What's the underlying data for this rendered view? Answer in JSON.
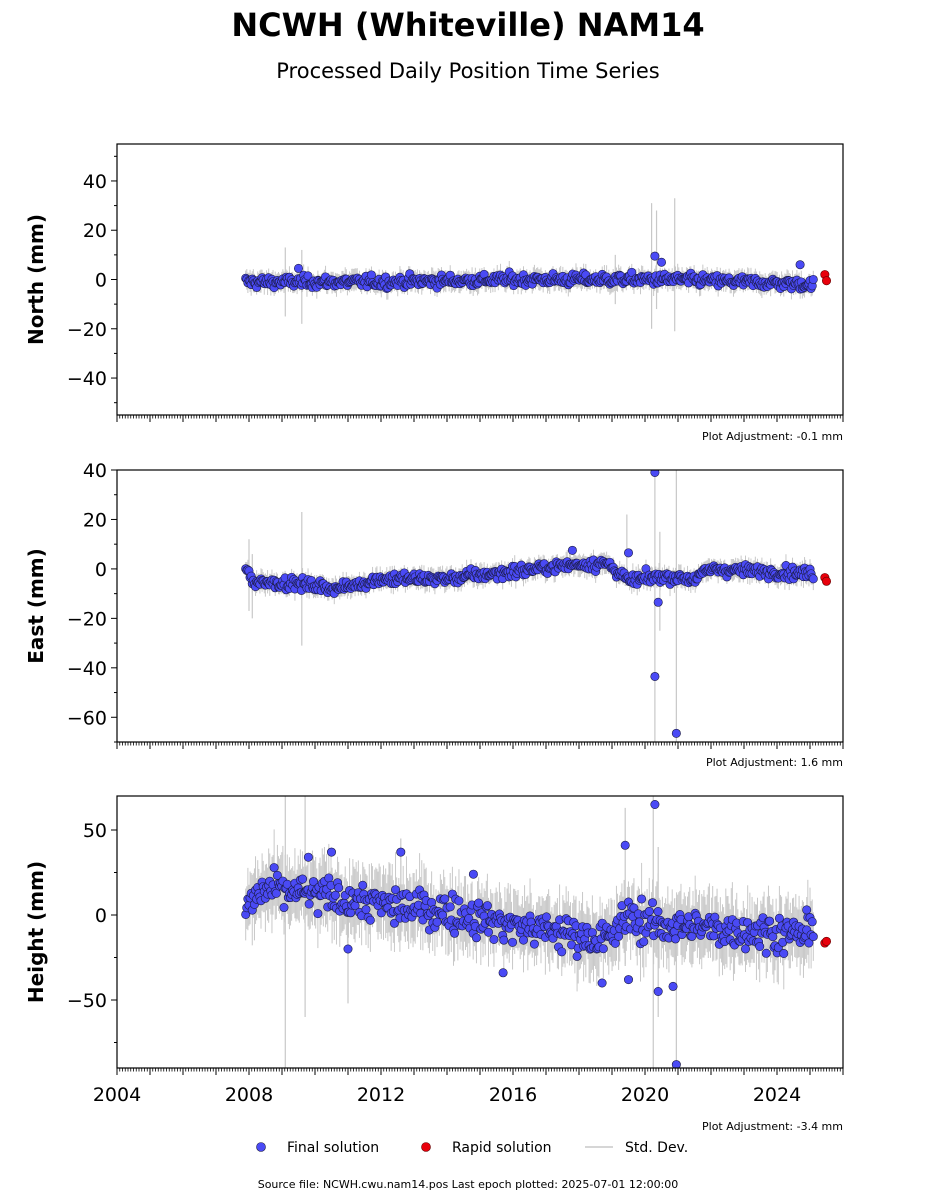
{
  "header": {
    "title": "NCWH (Whiteville) NAM14",
    "subtitle": "Processed Daily Position Time Series"
  },
  "legend": {
    "final_label": "Final solution",
    "rapid_label": "Rapid solution",
    "std_label": "Std. Dev."
  },
  "footer": {
    "source": "Source file: NCWH.cwu.nam14.pos  Last epoch plotted: 2025-07-01 12:00:00"
  },
  "colors": {
    "final": "#4a4af5",
    "final_edge": "#1a1a40",
    "rapid": "#e8000b",
    "std": "#c8c8c8"
  },
  "chart_data": [
    {
      "type": "scatter",
      "panel": "north",
      "ylabel": "North (mm)",
      "ylim": [
        -55,
        55
      ],
      "yticks": [
        -40,
        -20,
        0,
        20,
        40
      ],
      "xlim": [
        2004,
        2026
      ],
      "xticks": [
        2004,
        2008,
        2012,
        2016,
        2020,
        2024
      ],
      "adjustment": "Plot Adjustment: -0.1 mm",
      "final_range": [
        2007.9,
        2025.1
      ],
      "trend": [
        [
          2007.9,
          -1
        ],
        [
          2012,
          -1
        ],
        [
          2016,
          0
        ],
        [
          2019,
          0
        ],
        [
          2020.5,
          0
        ],
        [
          2021,
          0
        ],
        [
          2025.1,
          -2
        ]
      ],
      "scatter_sd": 1.6,
      "outliers": [
        [
          2020.3,
          9.5
        ],
        [
          2020.5,
          7.0
        ],
        [
          2009.5,
          4.5
        ],
        [
          2024.7,
          6.0
        ]
      ],
      "std_spikes": [
        [
          2009.1,
          -15,
          13
        ],
        [
          2009.6,
          -18,
          12
        ],
        [
          2020.2,
          -20,
          31
        ],
        [
          2020.35,
          -12,
          28
        ],
        [
          2020.9,
          -21,
          33
        ],
        [
          2019.1,
          -10,
          10
        ]
      ],
      "rapid": [
        [
          2025.45,
          2.0
        ],
        [
          2025.5,
          -0.5
        ]
      ],
      "grid": false
    },
    {
      "type": "scatter",
      "panel": "east",
      "ylabel": "East (mm)",
      "ylim": [
        -70,
        40
      ],
      "yticks": [
        -60,
        -40,
        -20,
        0,
        20,
        40
      ],
      "xlim": [
        2004,
        2026
      ],
      "xticks": [
        2004,
        2008,
        2012,
        2016,
        2020,
        2024
      ],
      "adjustment": "Plot Adjustment: 1.6 mm",
      "final_range": [
        2007.9,
        2025.1
      ],
      "trend": [
        [
          2007.9,
          0
        ],
        [
          2008.1,
          -5
        ],
        [
          2009.5,
          -6
        ],
        [
          2010.7,
          -8
        ],
        [
          2012,
          -4
        ],
        [
          2014,
          -4
        ],
        [
          2016,
          -1
        ],
        [
          2018,
          2
        ],
        [
          2018.9,
          2
        ],
        [
          2019.5,
          -5
        ],
        [
          2020.5,
          -3
        ],
        [
          2021.5,
          -4
        ],
        [
          2022,
          0
        ],
        [
          2025.1,
          -2
        ]
      ],
      "scatter_sd": 1.6,
      "outliers": [
        [
          2020.3,
          39
        ],
        [
          2020.3,
          -43.5
        ],
        [
          2020.4,
          -13.5
        ],
        [
          2019.5,
          6.5
        ],
        [
          2020.95,
          -66.5
        ],
        [
          2017.8,
          7.5
        ]
      ],
      "std_spikes": [
        [
          2008.0,
          -17,
          12
        ],
        [
          2008.1,
          -20,
          6
        ],
        [
          2009.6,
          -31,
          23
        ],
        [
          2019.45,
          -5,
          22
        ],
        [
          2020.3,
          -70,
          40
        ],
        [
          2020.45,
          -25,
          15
        ],
        [
          2020.95,
          -70,
          40
        ]
      ],
      "rapid": [
        [
          2025.45,
          -3.5
        ],
        [
          2025.5,
          -5.0
        ]
      ],
      "grid": false
    },
    {
      "type": "scatter",
      "panel": "height",
      "ylabel": "Height (mm)",
      "ylim": [
        -90,
        70
      ],
      "yticks": [
        -50,
        0,
        50
      ],
      "xlim": [
        2004,
        2026
      ],
      "xticks": [
        2004,
        2008,
        2012,
        2016,
        2020,
        2024
      ],
      "adjustment": "Plot Adjustment: -3.4 mm",
      "final_range": [
        2007.9,
        2025.1
      ],
      "trend": [
        [
          2007.9,
          5
        ],
        [
          2008.5,
          15
        ],
        [
          2010,
          12
        ],
        [
          2012,
          6
        ],
        [
          2014,
          2
        ],
        [
          2016,
          -6
        ],
        [
          2018,
          -12
        ],
        [
          2018.9,
          -15
        ],
        [
          2019.5,
          0
        ],
        [
          2020,
          -5
        ],
        [
          2022,
          -8
        ],
        [
          2025.1,
          -12
        ]
      ],
      "scatter_sd": 7.5,
      "outliers": [
        [
          2020.3,
          65
        ],
        [
          2019.4,
          41
        ],
        [
          2012.6,
          37
        ],
        [
          2010.5,
          37
        ],
        [
          2020.95,
          -88
        ],
        [
          2020.4,
          -45
        ],
        [
          2020.85,
          -42
        ],
        [
          2018.7,
          -40
        ],
        [
          2019.5,
          -38
        ],
        [
          2015.7,
          -34
        ],
        [
          2011.0,
          -20
        ],
        [
          2009.8,
          34
        ],
        [
          2014.8,
          24
        ],
        [
          2024.9,
          3
        ]
      ],
      "std_spikes": [
        [
          2009.1,
          -90,
          70
        ],
        [
          2009.7,
          -60,
          70
        ],
        [
          2011.0,
          -52,
          15
        ],
        [
          2019.4,
          -30,
          63
        ],
        [
          2020.25,
          -90,
          70
        ],
        [
          2020.4,
          -60,
          40
        ],
        [
          2020.95,
          -90,
          10
        ],
        [
          2012.6,
          -15,
          45
        ]
      ],
      "rapid": [
        [
          2025.45,
          -16.5
        ],
        [
          2025.5,
          -15.5
        ]
      ],
      "grid": false
    }
  ]
}
